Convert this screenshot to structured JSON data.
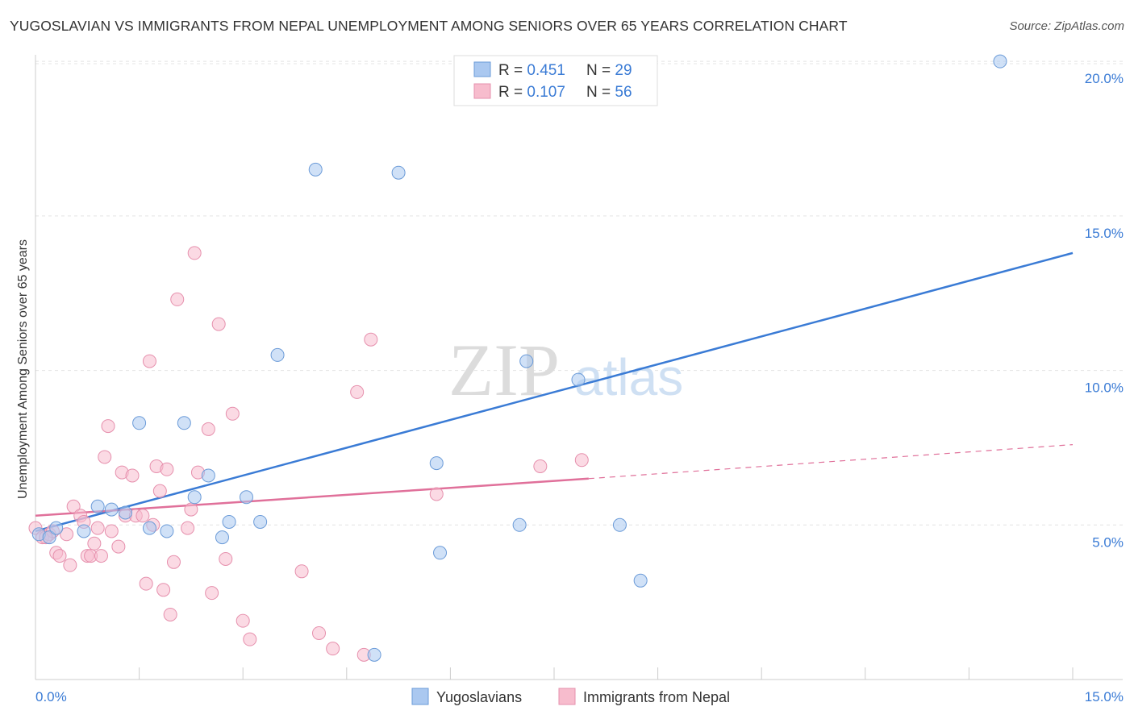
{
  "header": {
    "title": "YUGOSLAVIAN VS IMMIGRANTS FROM NEPAL UNEMPLOYMENT AMONG SENIORS OVER 65 YEARS CORRELATION CHART",
    "source": "Source: ZipAtlas.com"
  },
  "watermark": {
    "part1": "ZIP",
    "part2": "atlas"
  },
  "chart_data": {
    "type": "scatter",
    "title": "YUGOSLAVIAN VS IMMIGRANTS FROM NEPAL UNEMPLOYMENT AMONG SENIORS OVER 65 YEARS CORRELATION CHART",
    "xlabel": "",
    "ylabel": "Unemployment Among Seniors over 65 years",
    "xlim": [
      0,
      15
    ],
    "ylim": [
      0,
      20.5
    ],
    "x_tick_labels": [
      "0.0%",
      "15.0%"
    ],
    "y_ticks": [
      5,
      10,
      15,
      20
    ],
    "y_tick_labels": [
      "5.0%",
      "10.0%",
      "15.0%",
      "20.0%"
    ],
    "grid": true,
    "legend": {
      "position": "top-center",
      "entries": [
        {
          "r_label": "R = ",
          "r_value": "0.451",
          "n_label": "N = ",
          "n_value": "29"
        },
        {
          "r_label": "R = ",
          "r_value": "0.107",
          "n_label": "N = ",
          "n_value": "56"
        }
      ]
    },
    "bottom_legend": [
      "Yugoslavians",
      "Immigrants from Nepal"
    ],
    "colors": {
      "blue_fill": "#aac8f0",
      "blue_stroke": "#6b9bd8",
      "blue_line": "#3a7bd5",
      "pink_fill": "#f7bccd",
      "pink_stroke": "#e690ad",
      "pink_line": "#e0709a",
      "value_text": "#3a7bd5"
    },
    "series": [
      {
        "name": "Yugoslavians",
        "color": "#3a7bd5",
        "points": [
          [
            0.05,
            4.7
          ],
          [
            0.2,
            4.6
          ],
          [
            0.3,
            4.9
          ],
          [
            0.7,
            4.8
          ],
          [
            0.9,
            5.6
          ],
          [
            1.1,
            5.5
          ],
          [
            1.3,
            5.4
          ],
          [
            1.5,
            8.3
          ],
          [
            1.65,
            4.9
          ],
          [
            1.9,
            4.8
          ],
          [
            2.15,
            8.3
          ],
          [
            2.3,
            5.9
          ],
          [
            2.5,
            6.6
          ],
          [
            2.7,
            4.6
          ],
          [
            2.8,
            5.1
          ],
          [
            3.05,
            5.9
          ],
          [
            3.25,
            5.1
          ],
          [
            3.5,
            10.5
          ],
          [
            4.05,
            16.5
          ],
          [
            4.9,
            0.8
          ],
          [
            5.25,
            16.4
          ],
          [
            5.8,
            7.0
          ],
          [
            5.85,
            4.1
          ],
          [
            7.0,
            5.0
          ],
          [
            7.1,
            10.3
          ],
          [
            7.85,
            9.7
          ],
          [
            8.45,
            5.0
          ],
          [
            8.75,
            3.2
          ],
          [
            13.95,
            20.0
          ]
        ],
        "trend": {
          "x1": 0,
          "y1": 4.8,
          "x2": 15,
          "y2": 13.8
        }
      },
      {
        "name": "Immigrants from Nepal",
        "color": "#e0709a",
        "points": [
          [
            0.0,
            4.9
          ],
          [
            0.1,
            4.6
          ],
          [
            0.2,
            4.7
          ],
          [
            0.25,
            4.8
          ],
          [
            0.3,
            4.1
          ],
          [
            0.35,
            4.0
          ],
          [
            0.45,
            4.7
          ],
          [
            0.5,
            3.7
          ],
          [
            0.55,
            5.6
          ],
          [
            0.65,
            5.3
          ],
          [
            0.7,
            5.1
          ],
          [
            0.75,
            4.0
          ],
          [
            0.8,
            4.0
          ],
          [
            0.85,
            4.4
          ],
          [
            0.9,
            4.9
          ],
          [
            0.95,
            4.0
          ],
          [
            1.0,
            7.2
          ],
          [
            1.05,
            8.2
          ],
          [
            1.1,
            4.8
          ],
          [
            1.2,
            4.3
          ],
          [
            1.25,
            6.7
          ],
          [
            1.3,
            5.3
          ],
          [
            1.4,
            6.6
          ],
          [
            1.45,
            5.3
          ],
          [
            1.55,
            5.3
          ],
          [
            1.6,
            3.1
          ],
          [
            1.65,
            10.3
          ],
          [
            1.7,
            5.0
          ],
          [
            1.75,
            6.9
          ],
          [
            1.8,
            6.1
          ],
          [
            1.85,
            2.9
          ],
          [
            1.9,
            6.8
          ],
          [
            1.95,
            2.1
          ],
          [
            2.0,
            3.8
          ],
          [
            2.05,
            12.3
          ],
          [
            2.2,
            4.9
          ],
          [
            2.25,
            5.5
          ],
          [
            2.3,
            13.8
          ],
          [
            2.35,
            6.7
          ],
          [
            2.5,
            8.1
          ],
          [
            2.55,
            2.8
          ],
          [
            2.65,
            11.5
          ],
          [
            2.75,
            3.9
          ],
          [
            2.85,
            8.6
          ],
          [
            3.0,
            1.9
          ],
          [
            3.1,
            1.3
          ],
          [
            3.85,
            3.5
          ],
          [
            4.1,
            1.5
          ],
          [
            4.3,
            1.0
          ],
          [
            4.65,
            9.3
          ],
          [
            4.75,
            0.8
          ],
          [
            4.85,
            11.0
          ],
          [
            5.8,
            6.0
          ],
          [
            7.3,
            6.9
          ],
          [
            7.9,
            7.1
          ],
          [
            0.15,
            4.6
          ]
        ],
        "trend": {
          "x1": 0,
          "y1": 5.3,
          "x2": 8.0,
          "y2": 6.5
        },
        "trend_extension": {
          "x1": 8.0,
          "y1": 6.5,
          "x2": 15,
          "y2": 7.6
        }
      }
    ]
  }
}
